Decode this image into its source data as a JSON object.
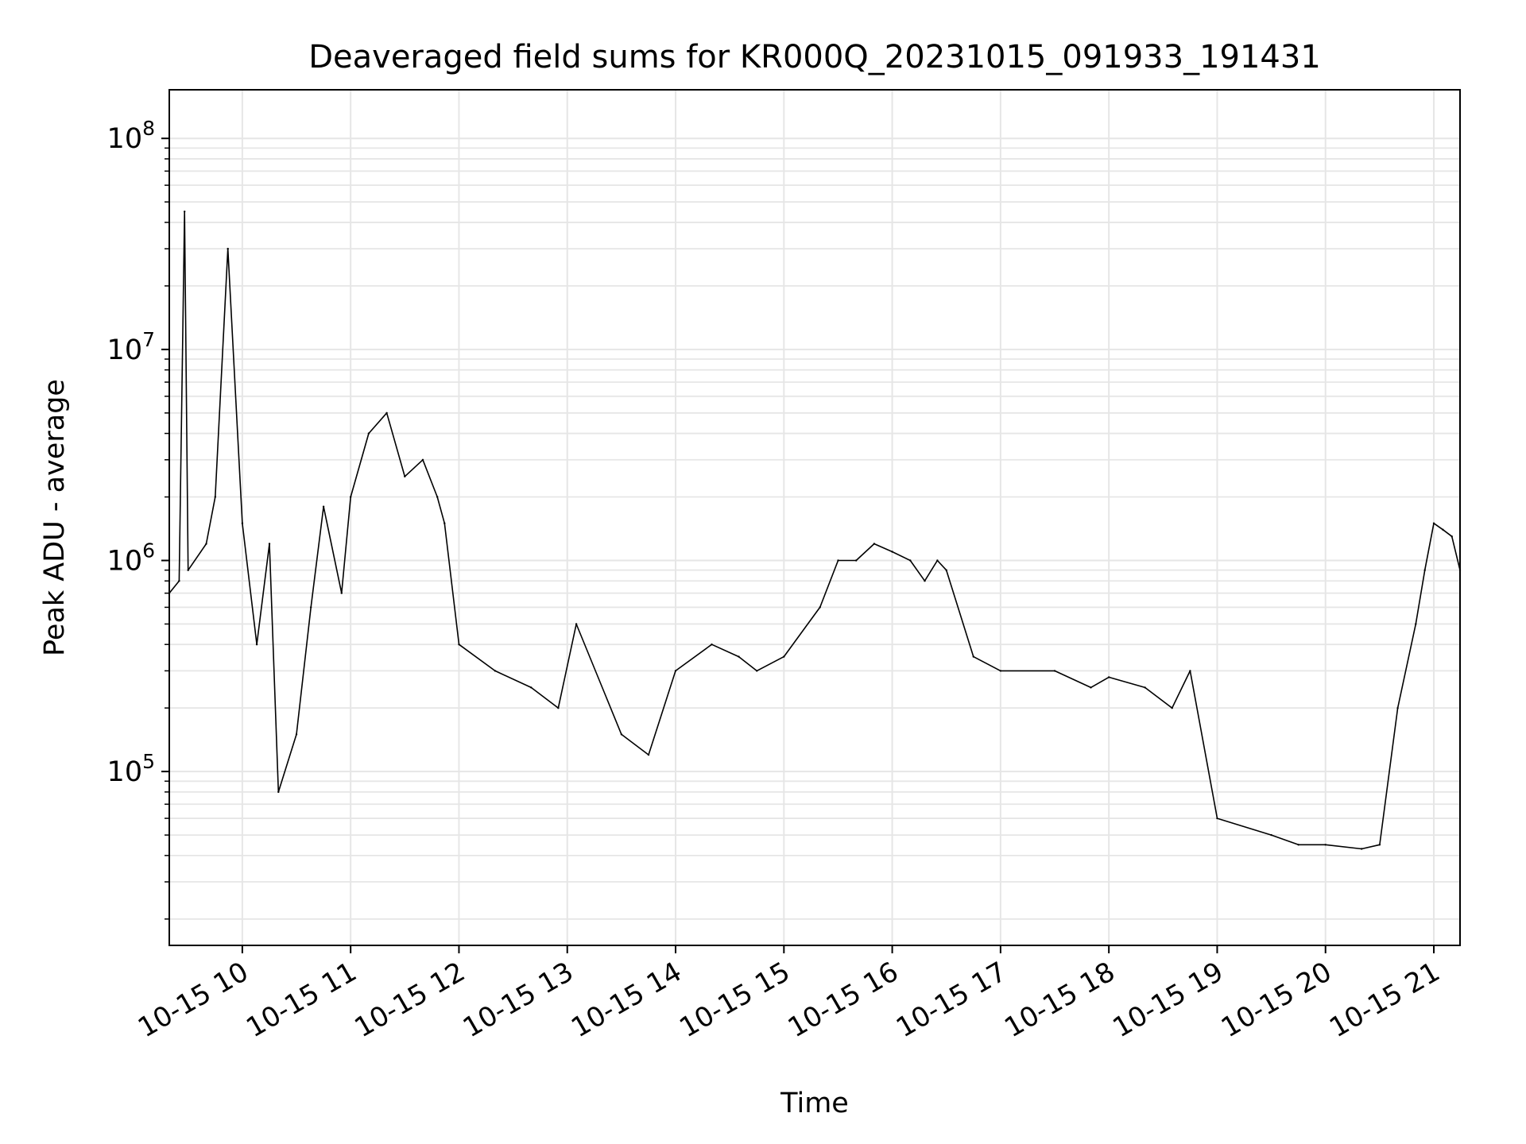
{
  "chart_data": {
    "type": "line",
    "title": "Deaveraged field sums for KR000Q_20231015_091933_191431",
    "xlabel": "Time",
    "ylabel": "Peak ADU - average",
    "y_scale": "log",
    "xlim": [
      "2023-10-15T09:19:33",
      "2023-10-15T21:14:31"
    ],
    "ylim": [
      15000,
      170000000
    ],
    "grid": true,
    "x_ticks": [
      {
        "t": "2023-10-15T10:00:00",
        "label": "10-15 10"
      },
      {
        "t": "2023-10-15T11:00:00",
        "label": "10-15 11"
      },
      {
        "t": "2023-10-15T12:00:00",
        "label": "10-15 12"
      },
      {
        "t": "2023-10-15T13:00:00",
        "label": "10-15 13"
      },
      {
        "t": "2023-10-15T14:00:00",
        "label": "10-15 14"
      },
      {
        "t": "2023-10-15T15:00:00",
        "label": "10-15 15"
      },
      {
        "t": "2023-10-15T16:00:00",
        "label": "10-15 16"
      },
      {
        "t": "2023-10-15T17:00:00",
        "label": "10-15 17"
      },
      {
        "t": "2023-10-15T18:00:00",
        "label": "10-15 18"
      },
      {
        "t": "2023-10-15T19:00:00",
        "label": "10-15 19"
      },
      {
        "t": "2023-10-15T20:00:00",
        "label": "10-15 20"
      },
      {
        "t": "2023-10-15T21:00:00",
        "label": "10-15 21"
      }
    ],
    "y_ticks": [
      {
        "value": 100000,
        "base": "10",
        "exp": "5"
      },
      {
        "value": 1000000,
        "base": "10",
        "exp": "6"
      },
      {
        "value": 10000000,
        "base": "10",
        "exp": "7"
      },
      {
        "value": 100000000,
        "base": "10",
        "exp": "8"
      }
    ],
    "series": [
      {
        "color": "#000000",
        "x": [
          "2023-10-15T09:19:33",
          "2023-10-15T09:25:00",
          "2023-10-15T09:28:00",
          "2023-10-15T09:30:00",
          "2023-10-15T09:40:00",
          "2023-10-15T09:45:00",
          "2023-10-15T09:52:00",
          "2023-10-15T10:00:00",
          "2023-10-15T10:08:00",
          "2023-10-15T10:15:00",
          "2023-10-15T10:20:00",
          "2023-10-15T10:30:00",
          "2023-10-15T10:38:00",
          "2023-10-15T10:45:00",
          "2023-10-15T10:55:00",
          "2023-10-15T11:00:00",
          "2023-10-15T11:10:00",
          "2023-10-15T11:20:00",
          "2023-10-15T11:30:00",
          "2023-10-15T11:40:00",
          "2023-10-15T11:48:00",
          "2023-10-15T11:52:00",
          "2023-10-15T12:00:00",
          "2023-10-15T12:20:00",
          "2023-10-15T12:40:00",
          "2023-10-15T12:55:00",
          "2023-10-15T13:05:00",
          "2023-10-15T13:30:00",
          "2023-10-15T13:45:00",
          "2023-10-15T14:00:00",
          "2023-10-15T14:20:00",
          "2023-10-15T14:35:00",
          "2023-10-15T14:45:00",
          "2023-10-15T15:00:00",
          "2023-10-15T15:20:00",
          "2023-10-15T15:30:00",
          "2023-10-15T15:40:00",
          "2023-10-15T15:50:00",
          "2023-10-15T16:00:00",
          "2023-10-15T16:10:00",
          "2023-10-15T16:18:00",
          "2023-10-15T16:25:00",
          "2023-10-15T16:30:00",
          "2023-10-15T16:45:00",
          "2023-10-15T17:00:00",
          "2023-10-15T17:30:00",
          "2023-10-15T17:50:00",
          "2023-10-15T18:00:00",
          "2023-10-15T18:20:00",
          "2023-10-15T18:35:00",
          "2023-10-15T18:45:00",
          "2023-10-15T19:00:00",
          "2023-10-15T19:30:00",
          "2023-10-15T19:45:00",
          "2023-10-15T20:00:00",
          "2023-10-15T20:20:00",
          "2023-10-15T20:30:00",
          "2023-10-15T20:40:00",
          "2023-10-15T20:50:00",
          "2023-10-15T20:55:00",
          "2023-10-15T21:00:00",
          "2023-10-15T21:05:00",
          "2023-10-15T21:10:00",
          "2023-10-15T21:14:31"
        ],
        "y": [
          700000,
          800000,
          45000000,
          900000,
          1200000,
          2000000,
          30000000,
          1500000,
          400000,
          1200000,
          80000,
          150000,
          600000,
          1800000,
          700000,
          2000000,
          4000000,
          5000000,
          2500000,
          3000000,
          2000000,
          1500000,
          400000,
          300000,
          250000,
          200000,
          500000,
          150000,
          120000,
          300000,
          400000,
          350000,
          300000,
          350000,
          600000,
          1000000,
          1000000,
          1200000,
          1100000,
          1000000,
          800000,
          1000000,
          900000,
          350000,
          300000,
          300000,
          250000,
          280000,
          250000,
          200000,
          300000,
          60000,
          50000,
          45000,
          45000,
          43000,
          45000,
          200000,
          500000,
          900000,
          1500000,
          1400000,
          1300000,
          900000
        ]
      }
    ]
  }
}
